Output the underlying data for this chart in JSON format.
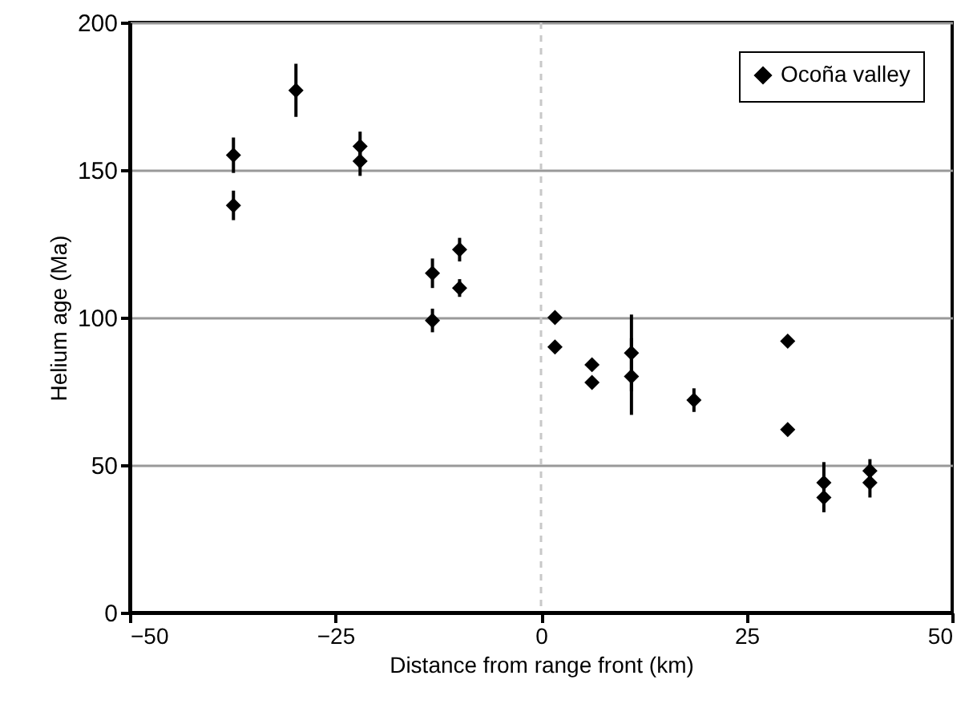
{
  "chart_data": {
    "type": "scatter",
    "xlabel": "Distance from range front (km)",
    "ylabel": "Helium age (Ma)",
    "xlim": [
      -50,
      50
    ],
    "xticks": [
      -50,
      -25,
      0,
      25,
      50
    ],
    "ylim": [
      0,
      200
    ],
    "yticks": [
      0,
      50,
      100,
      150,
      200
    ],
    "grid": "y",
    "legend": "top right",
    "marker": "diamond",
    "ref_lines": [
      {
        "axis": "x",
        "value": 0,
        "color": "#c8c8c8",
        "line_style": "dashed"
      }
    ],
    "series": [
      {
        "name": "Ocoña valley",
        "color": "#000000",
        "x": [
          -37.4,
          -37.4,
          -29.8,
          -22,
          -22,
          -13.2,
          -9.9,
          -13.2,
          -9.9,
          1.7,
          1.7,
          6.2,
          6.2,
          11,
          11,
          18.6,
          30,
          30,
          34.4,
          34.4,
          40,
          40
        ],
        "values": [
          155,
          138,
          177,
          158,
          153,
          115,
          123,
          99,
          110,
          100,
          90,
          84,
          78,
          88,
          80,
          72,
          92,
          62,
          44,
          39,
          48,
          44
        ],
        "errors": [
          6,
          5,
          9,
          5,
          5,
          5,
          4,
          4,
          3,
          null,
          null,
          null,
          null,
          [
            75,
            101
          ],
          [
            67,
            93
          ],
          4,
          null,
          null,
          [
            39,
            51
          ],
          [
            34,
            44
          ],
          [
            43,
            52
          ],
          [
            39,
            49
          ]
        ]
      }
    ]
  }
}
